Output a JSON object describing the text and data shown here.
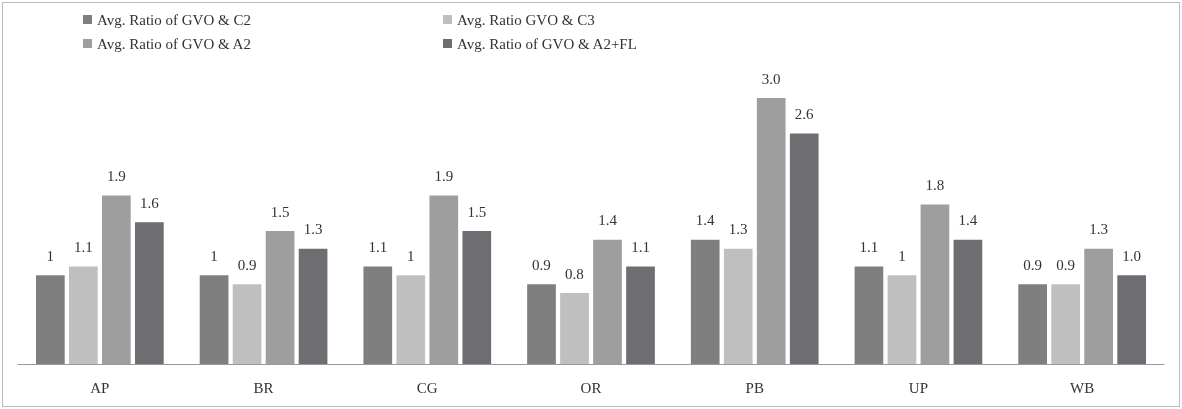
{
  "chart_data": {
    "type": "bar",
    "categories": [
      "AP",
      "BR",
      "CG",
      "OR",
      "PB",
      "UP",
      "WB"
    ],
    "series": [
      {
        "name": "Avg. Ratio of GVO & C2",
        "color": "#7f7f7f",
        "values": [
          1,
          1,
          1.1,
          0.9,
          1.4,
          1.1,
          0.9
        ],
        "value_labels": [
          "1",
          "1",
          "1.1",
          "0.9",
          "1.4",
          "1.1",
          "0.9"
        ]
      },
      {
        "name": "Avg. Ratio GVO & C3",
        "color": "#bfbfbf",
        "values": [
          1.1,
          0.9,
          1,
          0.8,
          1.3,
          1,
          0.9
        ],
        "value_labels": [
          "1.1",
          "0.9",
          "1",
          "0.8",
          "1.3",
          "1",
          "0.9"
        ]
      },
      {
        "name": "Avg. Ratio of GVO & A2",
        "color": "#9e9e9e",
        "values": [
          1.9,
          1.5,
          1.9,
          1.4,
          3.0,
          1.8,
          1.3
        ],
        "value_labels": [
          "1.9",
          "1.5",
          "1.9",
          "1.4",
          "3.0",
          "1.8",
          "1.3"
        ]
      },
      {
        "name": "Avg. Ratio of GVO & A2+FL",
        "color": "#6e6e72",
        "values": [
          1.6,
          1.3,
          1.5,
          1.1,
          2.6,
          1.4,
          1.0
        ],
        "value_labels": [
          "1.6",
          "1.3",
          "1.5",
          "1.1",
          "2.6",
          "1.4",
          "1.0"
        ]
      }
    ],
    "legend": "top left"
  }
}
